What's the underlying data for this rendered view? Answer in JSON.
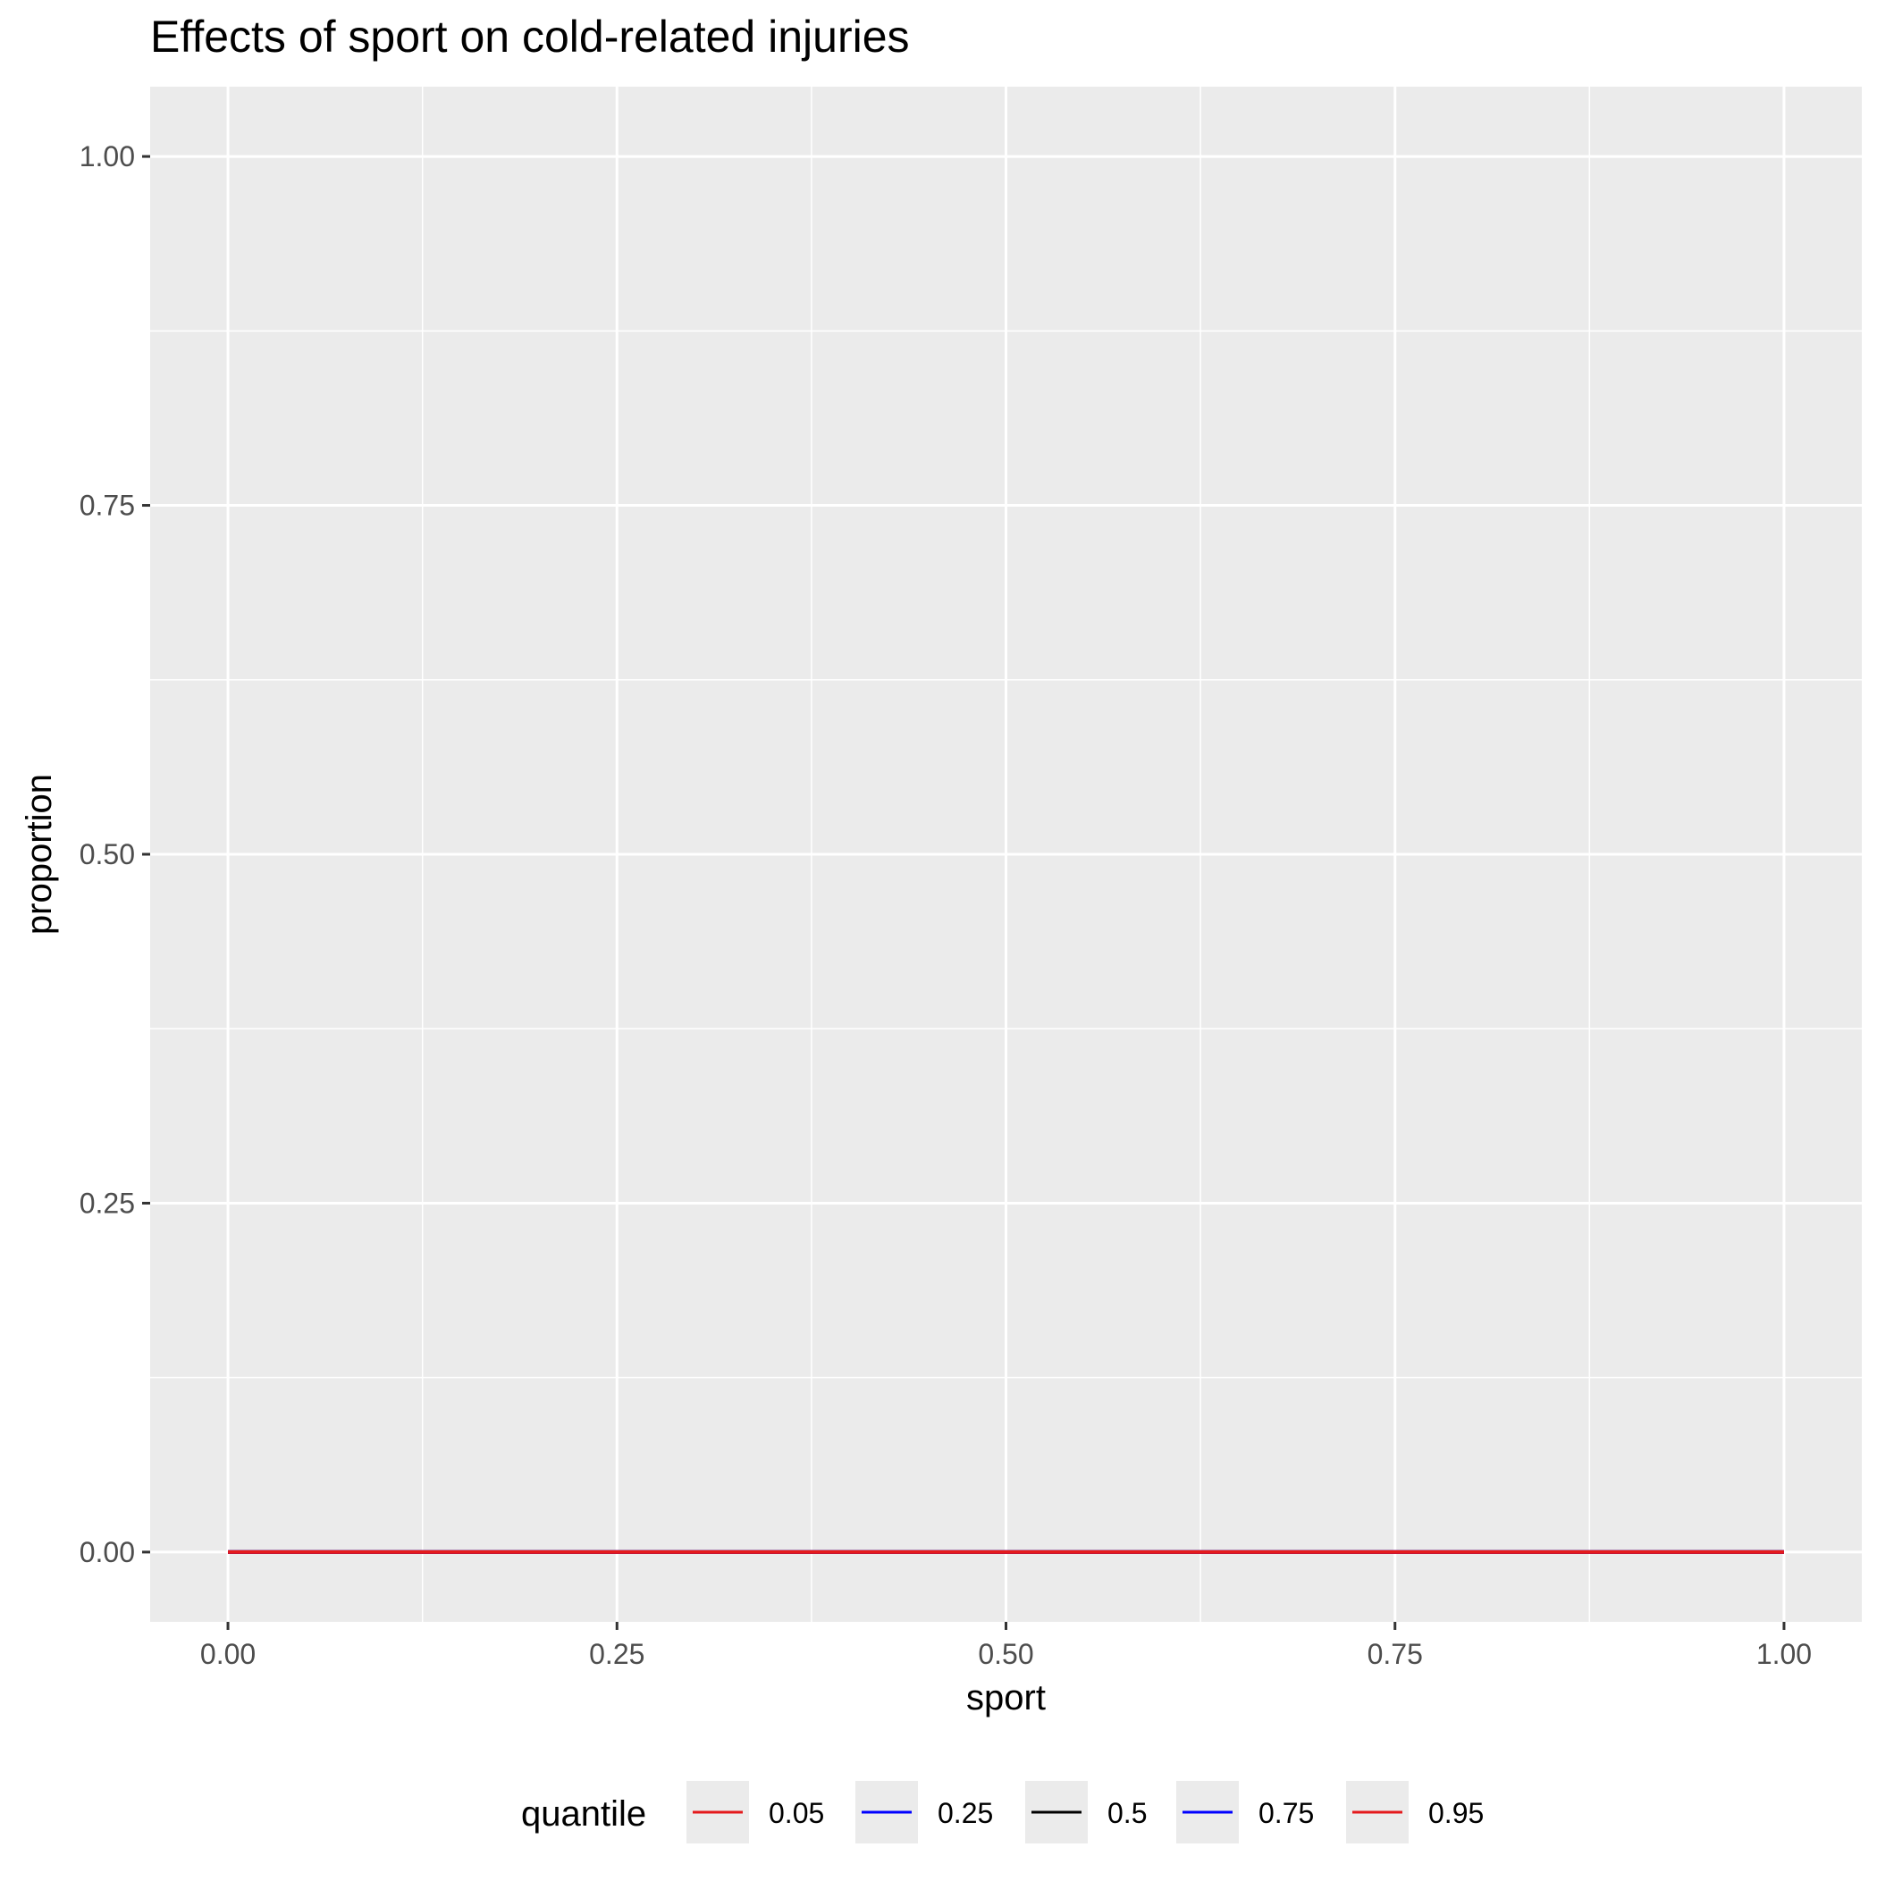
{
  "chart_data": {
    "type": "line",
    "title": "Effects of sport on cold-related injuries",
    "xlabel": "sport",
    "ylabel": "proportion",
    "xlim": [
      -0.05,
      1.05
    ],
    "ylim": [
      -0.05,
      1.05
    ],
    "x_ticks": [
      0.0,
      0.25,
      0.5,
      0.75,
      1.0
    ],
    "x_tick_labels": [
      "0.00",
      "0.25",
      "0.50",
      "0.75",
      "1.00"
    ],
    "y_ticks": [
      0.0,
      0.25,
      0.5,
      0.75,
      1.0
    ],
    "y_tick_labels": [
      "0.00",
      "0.25",
      "0.50",
      "0.75",
      "1.00"
    ],
    "grid": true,
    "legend": {
      "title": "quantile",
      "placement": "bottom"
    },
    "series": [
      {
        "name": "0.05",
        "color": "#e41a1c",
        "x": [
          0,
          1
        ],
        "y": [
          0,
          0
        ]
      },
      {
        "name": "0.25",
        "color": "#0000ff",
        "x": [
          0,
          1
        ],
        "y": [
          0,
          0
        ]
      },
      {
        "name": "0.5",
        "color": "#000000",
        "x": [
          0,
          1
        ],
        "y": [
          0,
          0
        ]
      },
      {
        "name": "0.75",
        "color": "#0000ff",
        "x": [
          0,
          1
        ],
        "y": [
          0,
          0
        ]
      },
      {
        "name": "0.95",
        "color": "#e41a1c",
        "x": [
          0,
          1
        ],
        "y": [
          0,
          0
        ]
      }
    ]
  }
}
